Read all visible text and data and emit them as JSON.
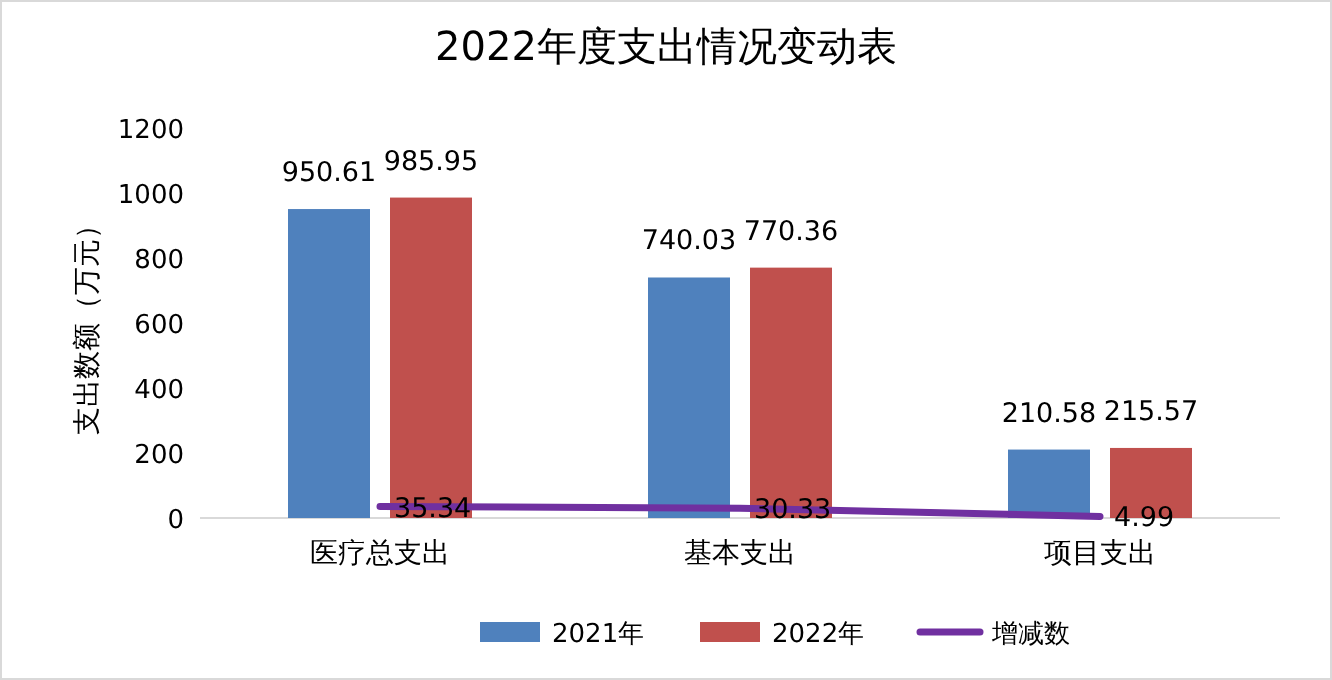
{
  "chart_data": {
    "type": "bar",
    "title": "2022年度支出情况变动表",
    "ylabel": "支出数额（万元）",
    "categories": [
      "医疗总支出",
      "基本支出",
      "项目支出"
    ],
    "series": [
      {
        "name": "2021年",
        "color": "#4f81bd",
        "values": [
          950.61,
          740.03,
          210.58
        ]
      },
      {
        "name": "2022年",
        "color": "#c0504d",
        "values": [
          985.95,
          770.36,
          215.57
        ]
      },
      {
        "name": "增减数",
        "type": "line",
        "color": "#7030a0",
        "values": [
          35.34,
          30.33,
          4.99
        ]
      }
    ],
    "ylim": [
      0,
      1200
    ],
    "yticks": [
      0,
      200,
      400,
      600,
      800,
      1000,
      1200
    ],
    "data_labels": true,
    "legend": "bottom"
  }
}
